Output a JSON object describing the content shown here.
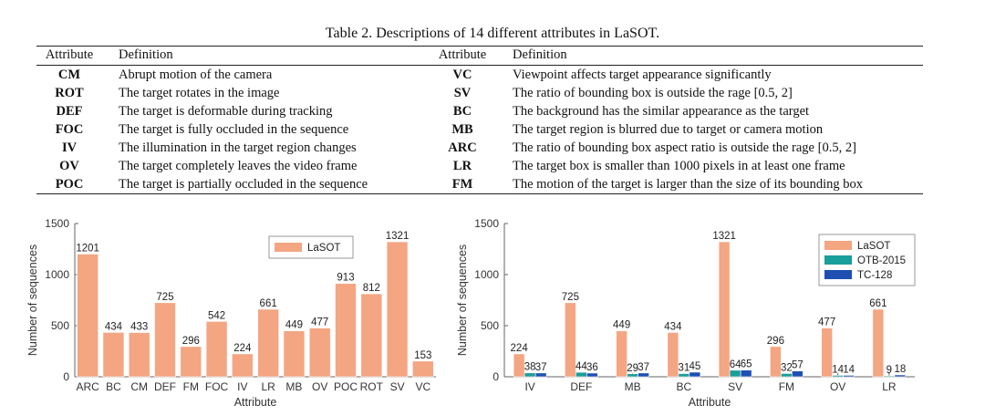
{
  "table": {
    "caption": "Table 2. Descriptions of 14 different attributes in LaSOT.",
    "headers": [
      "Attribute",
      "Definition",
      "Attribute",
      "Definition"
    ],
    "rows": [
      {
        "a1": "CM",
        "d1": "Abrupt motion of the camera",
        "a2": "VC",
        "d2": "Viewpoint affects target appearance significantly"
      },
      {
        "a1": "ROT",
        "d1": "The target rotates in the image",
        "a2": "SV",
        "d2": "The ratio of bounding box is outside the rage [0.5, 2]"
      },
      {
        "a1": "DEF",
        "d1": "The target is deformable during tracking",
        "a2": "BC",
        "d2": "The background has the similar appearance as the target"
      },
      {
        "a1": "FOC",
        "d1": "The target is fully occluded in the sequence",
        "a2": "MB",
        "d2": "The target region is blurred due to target or camera motion"
      },
      {
        "a1": "IV",
        "d1": "The illumination in the target region changes",
        "a2": "ARC",
        "d2": "The ratio of bounding box aspect ratio is outside the rage [0.5, 2]"
      },
      {
        "a1": "OV",
        "d1": "The target completely leaves the video frame",
        "a2": "LR",
        "d2": "The target box is smaller than 1000 pixels in at least one frame"
      },
      {
        "a1": "POC",
        "d1": "The target is partially occluded in the sequence",
        "a2": "FM",
        "d2": "The motion of the target is larger than the size of its bounding box"
      }
    ]
  },
  "colors": {
    "lasot": "#f4a582",
    "otb": "#1a9e9b",
    "tc": "#1f4fb3"
  },
  "chart_data": [
    {
      "type": "bar",
      "xlabel": "Attribute",
      "ylabel": "Number of sequences",
      "ylim": [
        0,
        1500
      ],
      "yticks": [
        0,
        500,
        1000,
        1500
      ],
      "legend_position": "top-right",
      "categories": [
        "ARC",
        "BC",
        "CM",
        "DEF",
        "FM",
        "FOC",
        "IV",
        "LR",
        "MB",
        "OV",
        "POC",
        "ROT",
        "SV",
        "VC"
      ],
      "series": [
        {
          "name": "LaSOT",
          "color_key": "lasot",
          "values": [
            1201,
            434,
            433,
            725,
            296,
            542,
            224,
            661,
            449,
            477,
            913,
            812,
            1321,
            153
          ]
        }
      ]
    },
    {
      "type": "bar",
      "xlabel": "Attribute",
      "ylabel": "Number of sequences",
      "ylim": [
        0,
        1500
      ],
      "yticks": [
        0,
        500,
        1000,
        1500
      ],
      "legend_position": "top-right",
      "categories": [
        "IV",
        "DEF",
        "MB",
        "BC",
        "SV",
        "FM",
        "OV",
        "LR"
      ],
      "series": [
        {
          "name": "LaSOT",
          "color_key": "lasot",
          "values": [
            224,
            725,
            449,
            434,
            1321,
            296,
            477,
            661
          ]
        },
        {
          "name": "OTB-2015",
          "color_key": "otb",
          "values": [
            38,
            44,
            29,
            31,
            64,
            32,
            14,
            9
          ]
        },
        {
          "name": "TC-128",
          "color_key": "tc",
          "values": [
            37,
            36,
            37,
            45,
            65,
            57,
            14,
            18
          ]
        }
      ]
    }
  ]
}
